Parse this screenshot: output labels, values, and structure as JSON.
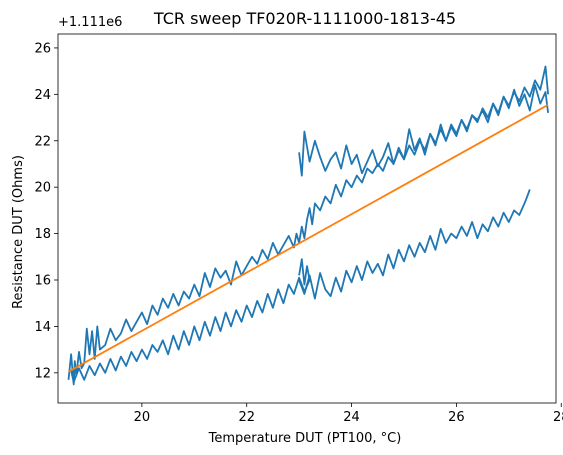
{
  "chart_data": {
    "type": "line",
    "title": "TCR sweep TF020R-1111000-1813-45",
    "xlabel": "Temperature DUT (PT100, °C)",
    "ylabel": "Resistance DUT (Ohms)",
    "offset_text": "+1.111e6",
    "xlim": [
      18.4,
      27.9
    ],
    "ylim": [
      10.7,
      26.6
    ],
    "xticks": [
      20,
      22,
      24,
      26,
      28
    ],
    "yticks": [
      12,
      14,
      16,
      18,
      20,
      22,
      24,
      26
    ],
    "grid": false,
    "series": [
      {
        "color": "#1f77b4",
        "x": [
          18.6,
          18.65,
          18.7,
          18.72,
          18.75,
          18.8,
          18.85,
          18.9,
          18.95,
          19.0,
          19.05,
          19.1,
          19.15,
          19.2,
          19.3,
          19.4,
          19.5,
          19.6,
          19.7,
          19.8,
          19.9,
          20.0,
          20.1,
          20.2,
          20.3,
          20.4,
          20.5,
          20.6,
          20.7,
          20.8,
          20.9,
          21.0,
          21.1,
          21.2,
          21.3,
          21.4,
          21.5,
          21.6,
          21.7,
          21.8,
          21.9,
          22.0,
          22.1,
          22.2,
          22.3,
          22.4,
          22.5,
          22.6,
          22.7,
          22.8,
          22.9,
          22.95,
          23.0,
          23.05,
          23.1,
          23.15,
          23.2,
          23.25,
          23.3,
          23.4,
          23.5,
          23.6,
          23.7,
          23.8,
          23.9,
          24.0,
          24.1,
          24.2,
          24.3,
          24.4,
          24.5,
          24.6,
          24.7,
          24.8,
          24.9,
          25.0,
          25.1,
          25.2,
          25.3,
          25.4,
          25.5,
          25.6,
          25.7,
          25.8,
          25.9,
          26.0,
          26.1,
          26.2,
          26.3,
          26.4,
          26.5,
          26.6,
          26.7,
          26.8,
          26.9,
          27.0,
          27.1,
          27.2,
          27.3,
          27.4,
          27.5,
          27.6,
          27.7,
          27.75
        ],
        "y": [
          11.7,
          12.8,
          11.5,
          12.5,
          11.9,
          12.9,
          12.2,
          12.4,
          13.9,
          12.8,
          13.8,
          12.6,
          14.0,
          13.0,
          13.2,
          13.9,
          13.4,
          13.7,
          14.3,
          13.8,
          14.2,
          14.6,
          14.1,
          14.9,
          14.5,
          15.2,
          14.8,
          15.4,
          14.9,
          15.5,
          15.2,
          15.8,
          15.3,
          16.3,
          15.7,
          16.5,
          16.1,
          16.4,
          15.8,
          16.8,
          16.2,
          16.6,
          17.0,
          16.7,
          17.3,
          16.9,
          17.6,
          17.1,
          17.5,
          17.9,
          17.4,
          18.0,
          17.6,
          18.3,
          17.8,
          18.6,
          19.1,
          18.4,
          19.3,
          19.0,
          19.6,
          19.3,
          20.1,
          19.6,
          20.3,
          20.0,
          20.5,
          20.2,
          20.8,
          20.6,
          21.0,
          20.7,
          21.3,
          21.0,
          21.6,
          21.2,
          21.8,
          21.4,
          22.0,
          21.6,
          22.3,
          21.9,
          22.5,
          22.0,
          22.7,
          22.3,
          22.9,
          22.5,
          23.1,
          22.8,
          23.4,
          23.0,
          23.6,
          23.2,
          23.9,
          23.5,
          24.1,
          23.7,
          24.3,
          23.9,
          24.6,
          24.2,
          25.2,
          24.0
        ]
      },
      {
        "color": "#1f77b4",
        "x": [
          27.75,
          27.7,
          27.6,
          27.5,
          27.4,
          27.3,
          27.2,
          27.1,
          27.0,
          26.9,
          26.8,
          26.7,
          26.6,
          26.5,
          26.4,
          26.3,
          26.2,
          26.1,
          26.0,
          25.9,
          25.8,
          25.7,
          25.6,
          25.5,
          25.4,
          25.3,
          25.2,
          25.1,
          25.0,
          24.9,
          24.8,
          24.7,
          24.6,
          24.5,
          24.4,
          24.3,
          24.2,
          24.1,
          24.0,
          23.9,
          23.8,
          23.7,
          23.6,
          23.5,
          23.4,
          23.3,
          23.2,
          23.1,
          23.05,
          23.0
        ],
        "y": [
          23.2,
          24.1,
          23.6,
          24.4,
          23.3,
          24.0,
          23.5,
          24.2,
          23.4,
          23.9,
          23.1,
          23.6,
          22.8,
          23.3,
          22.9,
          23.1,
          22.4,
          22.9,
          22.2,
          22.6,
          22.0,
          22.7,
          21.8,
          22.3,
          21.4,
          22.1,
          21.6,
          22.5,
          21.2,
          21.7,
          21.0,
          21.9,
          21.3,
          20.9,
          21.6,
          21.1,
          20.6,
          21.4,
          21.0,
          21.8,
          20.8,
          21.5,
          21.2,
          20.7,
          21.3,
          22.0,
          21.1,
          22.4,
          20.5,
          21.5
        ]
      },
      {
        "color": "#1f77b4",
        "x": [
          23.0,
          23.05,
          23.1,
          23.15,
          23.2,
          23.1,
          23.0,
          22.9,
          22.8,
          22.7,
          22.6,
          22.5,
          22.4,
          22.3,
          22.2,
          22.1,
          22.0,
          21.9,
          21.8,
          21.7,
          21.6,
          21.5,
          21.4,
          21.3,
          21.2,
          21.1,
          21.0,
          20.9,
          20.8,
          20.7,
          20.6,
          20.5,
          20.4,
          20.3,
          20.2,
          20.1,
          20.0,
          19.9,
          19.8,
          19.7,
          19.6,
          19.5,
          19.4,
          19.3,
          19.2,
          19.1,
          19.0,
          18.9,
          18.8,
          18.7,
          18.65
        ],
        "y": [
          16.2,
          16.9,
          15.8,
          16.6,
          16.0,
          15.5,
          16.1,
          15.4,
          15.8,
          15.0,
          15.6,
          14.8,
          15.4,
          14.6,
          15.1,
          14.4,
          14.9,
          14.2,
          14.7,
          14.0,
          14.6,
          13.8,
          14.4,
          13.6,
          14.2,
          13.4,
          14.0,
          13.2,
          13.8,
          13.0,
          13.6,
          12.8,
          13.4,
          12.9,
          13.2,
          12.6,
          13.0,
          12.5,
          12.9,
          12.3,
          12.7,
          12.1,
          12.6,
          12.0,
          12.4,
          11.9,
          12.3,
          11.7,
          12.2,
          11.6,
          12.1
        ]
      },
      {
        "color": "#1f77b4",
        "x": [
          23.0,
          23.1,
          23.2,
          23.3,
          23.4,
          23.5,
          23.6,
          23.7,
          23.8,
          23.9,
          24.0,
          24.1,
          24.2,
          24.3,
          24.4,
          24.5,
          24.6,
          24.7,
          24.8,
          24.9,
          25.0,
          25.1,
          25.2,
          25.3,
          25.4,
          25.5,
          25.6,
          25.7,
          25.8,
          25.9,
          26.0,
          26.1,
          26.2,
          26.3,
          26.4,
          26.5,
          26.6,
          26.7,
          26.8,
          26.9,
          27.0,
          27.1,
          27.2,
          27.3,
          27.35,
          27.4
        ],
        "y": [
          16.0,
          15.4,
          16.2,
          15.2,
          16.3,
          15.6,
          15.3,
          16.1,
          15.5,
          16.4,
          15.9,
          16.6,
          16.0,
          16.8,
          16.3,
          16.7,
          16.2,
          17.1,
          16.5,
          17.3,
          16.8,
          17.5,
          17.0,
          17.6,
          17.2,
          17.9,
          17.3,
          18.2,
          17.6,
          18.0,
          17.8,
          18.3,
          17.9,
          18.5,
          17.8,
          18.4,
          18.1,
          18.7,
          18.3,
          18.9,
          18.5,
          19.0,
          18.8,
          19.3,
          19.6,
          19.9
        ]
      },
      {
        "color": "#ff7f0e",
        "x": [
          18.6,
          27.75
        ],
        "y": [
          12.05,
          23.55
        ]
      }
    ]
  }
}
